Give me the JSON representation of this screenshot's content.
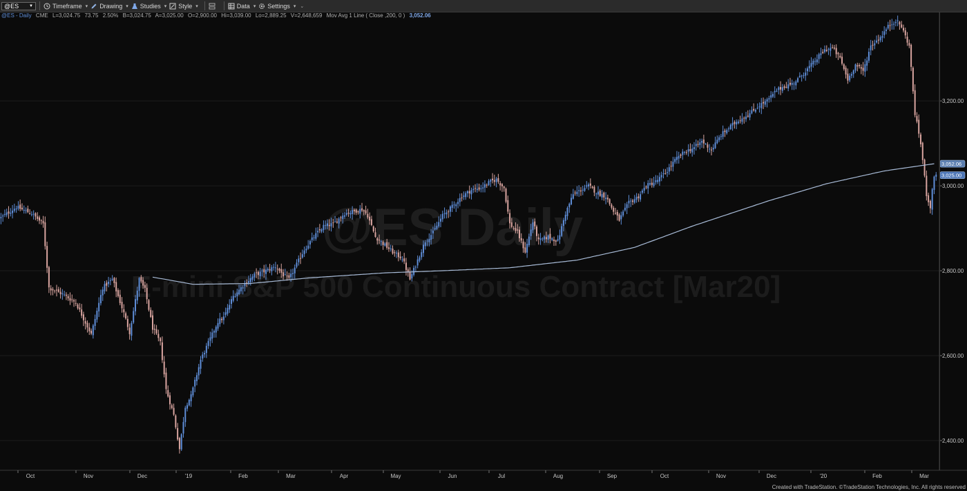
{
  "toolbar": {
    "symbol": "@ES",
    "items": [
      {
        "label": "Timeframe",
        "icon": "clock-icon"
      },
      {
        "label": "Drawing",
        "icon": "pencil-icon"
      },
      {
        "label": "Studies",
        "icon": "flask-icon"
      },
      {
        "label": "Style",
        "icon": "style-icon"
      },
      {
        "label": "",
        "icon": "layout-icon"
      },
      {
        "label": "Data",
        "icon": "data-icon"
      },
      {
        "label": "Settings",
        "icon": "gear-icon"
      }
    ]
  },
  "info": {
    "symbol": "@ES - Daily",
    "exchange": "CME",
    "last": "L=3,024.75",
    "change": "73.75",
    "pct": "2.50%",
    "bid": "B=3,024.75",
    "ask": "A=3,025.00",
    "open": "O=2,900.00",
    "high": "Hi=3,039.00",
    "low": "Lo=2,889.25",
    "volume": "V=2,648,659",
    "study": "Mov Avg 1 Line ( Close ,200, 0 )",
    "study_value": "3,052.06"
  },
  "watermark": {
    "line1": "@ES Daily",
    "line2": "E-mini S&P 500 Continuous Contract [Mar20]"
  },
  "footer": "Created with TradeStation. ©TradeStation Technologies, Inc. All rights reserved",
  "colors": {
    "up": "#5f8ed8",
    "down": "#d9a5a0",
    "ma": "#a9bcd8",
    "badge": "#4f78b8"
  },
  "chart_data": {
    "type": "candlestick",
    "title": "@ES Daily",
    "subtitle": "E-mini S&P 500 Continuous Contract [Mar20]",
    "x_tick_labels": [
      "Oct",
      "Nov",
      "Dec",
      "'19",
      "Feb",
      "Mar",
      "Apr",
      "May",
      "Jun",
      "Jul",
      "Aug",
      "Sep",
      "Oct",
      "Nov",
      "Dec",
      "'20",
      "Feb",
      "Mar"
    ],
    "y_ticks": [
      2400,
      2600,
      2800,
      3000,
      3200
    ],
    "y_tick_labels": [
      "2,400.00",
      "2,600.00",
      "2,800.00",
      "3,000.00",
      "3,200.00"
    ],
    "ylim": [
      2330,
      3410
    ],
    "price_badges": [
      {
        "value": 3052.06,
        "label": "3,052.06"
      },
      {
        "value": 3025.0,
        "label": "3,025.00"
      }
    ],
    "close_path": [
      [
        0,
        2925
      ],
      [
        8,
        2950
      ],
      [
        16,
        2935
      ],
      [
        22,
        2910
      ],
      [
        25,
        2760
      ],
      [
        32,
        2745
      ],
      [
        39,
        2725
      ],
      [
        47,
        2650
      ],
      [
        53,
        2760
      ],
      [
        58,
        2780
      ],
      [
        64,
        2700
      ],
      [
        67,
        2655
      ],
      [
        72,
        2780
      ],
      [
        75,
        2755
      ],
      [
        79,
        2665
      ],
      [
        83,
        2630
      ],
      [
        86,
        2520
      ],
      [
        90,
        2460
      ],
      [
        93,
        2380
      ],
      [
        96,
        2480
      ],
      [
        99,
        2505
      ],
      [
        104,
        2590
      ],
      [
        108,
        2630
      ],
      [
        113,
        2680
      ],
      [
        116,
        2690
      ],
      [
        121,
        2740
      ],
      [
        126,
        2765
      ],
      [
        132,
        2790
      ],
      [
        138,
        2800
      ],
      [
        143,
        2810
      ],
      [
        147,
        2790
      ],
      [
        150,
        2780
      ],
      [
        154,
        2815
      ],
      [
        158,
        2850
      ],
      [
        163,
        2880
      ],
      [
        168,
        2905
      ],
      [
        173,
        2910
      ],
      [
        179,
        2935
      ],
      [
        184,
        2940
      ],
      [
        188,
        2945
      ],
      [
        191,
        2930
      ],
      [
        195,
        2880
      ],
      [
        200,
        2860
      ],
      [
        205,
        2840
      ],
      [
        209,
        2830
      ],
      [
        213,
        2780
      ],
      [
        217,
        2825
      ],
      [
        221,
        2870
      ],
      [
        225,
        2890
      ],
      [
        230,
        2930
      ],
      [
        236,
        2955
      ],
      [
        240,
        2975
      ],
      [
        245,
        2990
      ],
      [
        250,
        2995
      ],
      [
        255,
        3010
      ],
      [
        258,
        3015
      ],
      [
        262,
        2995
      ],
      [
        265,
        2910
      ],
      [
        269,
        2890
      ],
      [
        273,
        2845
      ],
      [
        277,
        2915
      ],
      [
        280,
        2870
      ],
      [
        285,
        2880
      ],
      [
        290,
        2870
      ],
      [
        294,
        2935
      ],
      [
        298,
        2980
      ],
      [
        302,
        2990
      ],
      [
        306,
        3000
      ],
      [
        310,
        2985
      ],
      [
        315,
        2975
      ],
      [
        319,
        2940
      ],
      [
        322,
        2920
      ],
      [
        327,
        2960
      ],
      [
        332,
        2975
      ],
      [
        336,
        3000
      ],
      [
        341,
        3010
      ],
      [
        346,
        3030
      ],
      [
        351,
        3060
      ],
      [
        356,
        3080
      ],
      [
        361,
        3090
      ],
      [
        365,
        3105
      ],
      [
        370,
        3085
      ],
      [
        375,
        3120
      ],
      [
        380,
        3140
      ],
      [
        384,
        3155
      ],
      [
        390,
        3170
      ],
      [
        395,
        3190
      ],
      [
        399,
        3200
      ],
      [
        404,
        3225
      ],
      [
        408,
        3235
      ],
      [
        412,
        3240
      ],
      [
        416,
        3255
      ],
      [
        420,
        3275
      ],
      [
        425,
        3300
      ],
      [
        429,
        3320
      ],
      [
        433,
        3325
      ],
      [
        437,
        3300
      ],
      [
        441,
        3250
      ],
      [
        445,
        3285
      ],
      [
        449,
        3270
      ],
      [
        453,
        3330
      ],
      [
        458,
        3350
      ],
      [
        462,
        3375
      ],
      [
        466,
        3390
      ],
      [
        469,
        3375
      ],
      [
        473,
        3330
      ],
      [
        476,
        3170
      ],
      [
        479,
        3100
      ],
      [
        482,
        2980
      ],
      [
        484,
        2950
      ],
      [
        486,
        3025
      ]
    ],
    "moving_average": {
      "name": "Mov Avg 1 Line ( Close ,200, 0 )",
      "points": [
        [
          79,
          2785
        ],
        [
          100,
          2768
        ],
        [
          130,
          2770
        ],
        [
          160,
          2783
        ],
        [
          200,
          2795
        ],
        [
          230,
          2800
        ],
        [
          265,
          2807
        ],
        [
          300,
          2825
        ],
        [
          330,
          2855
        ],
        [
          360,
          2905
        ],
        [
          400,
          2965
        ],
        [
          430,
          3005
        ],
        [
          460,
          3035
        ],
        [
          486,
          3052
        ]
      ]
    },
    "total_bars": 488
  }
}
